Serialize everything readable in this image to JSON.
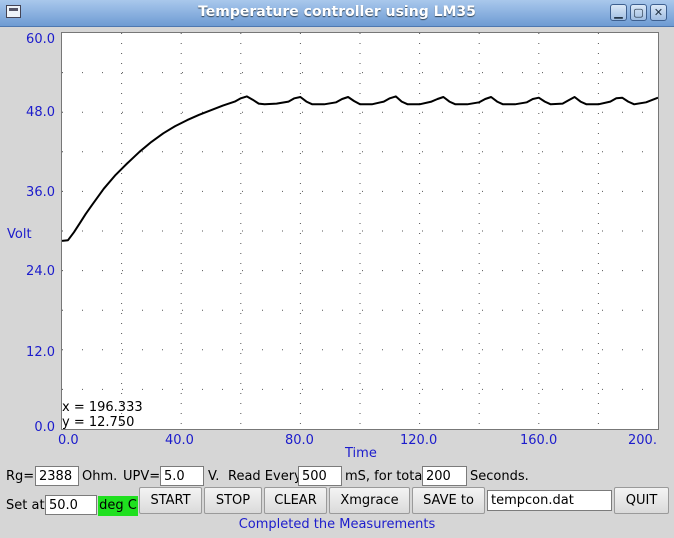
{
  "window": {
    "title": "Temperature controller using LM35"
  },
  "chart_data": {
    "type": "line",
    "xlabel": "Time",
    "ylabel": "Volt",
    "xlim": [
      0,
      200
    ],
    "ylim": [
      0,
      60
    ],
    "xticks": [
      0,
      40,
      80,
      120,
      160,
      200
    ],
    "yticks": [
      0,
      12,
      24,
      36,
      48,
      60
    ],
    "xtick_labels": [
      "0.0",
      "40.0",
      "80.0",
      "120.0",
      "160.0",
      "200."
    ],
    "ytick_labels": [
      "0.0",
      "12.0",
      "24.0",
      "36.0",
      "48.0",
      "60.0"
    ],
    "grid": true,
    "series": [
      {
        "color": "#000000",
        "x": [
          0,
          2,
          4,
          6,
          8,
          10,
          14,
          18,
          22,
          26,
          30,
          34,
          38,
          42,
          46,
          50,
          54,
          58,
          60,
          62,
          64,
          66,
          68,
          72,
          76,
          78,
          80,
          82,
          84,
          88,
          92,
          94,
          96,
          98,
          100,
          104,
          108,
          110,
          112,
          114,
          116,
          120,
          124,
          126,
          128,
          130,
          132,
          136,
          140,
          142,
          144,
          146,
          148,
          152,
          156,
          158,
          160,
          162,
          164,
          168,
          170,
          172,
          174,
          176,
          180,
          184,
          186,
          188,
          190,
          192,
          196,
          200
        ],
        "y": [
          28.5,
          28.6,
          29.8,
          31.2,
          32.6,
          33.9,
          36.4,
          38.5,
          40.3,
          42.0,
          43.5,
          44.8,
          45.9,
          46.8,
          47.6,
          48.3,
          49.0,
          49.6,
          50.1,
          50.4,
          49.9,
          49.3,
          49.2,
          49.3,
          49.6,
          50.1,
          50.3,
          49.6,
          49.2,
          49.2,
          49.5,
          50.0,
          50.3,
          49.7,
          49.2,
          49.2,
          49.6,
          50.1,
          50.4,
          49.6,
          49.2,
          49.2,
          49.6,
          50.0,
          50.3,
          49.6,
          49.2,
          49.2,
          49.5,
          50.0,
          50.3,
          49.6,
          49.2,
          49.2,
          49.5,
          50.0,
          50.2,
          49.6,
          49.2,
          49.3,
          49.8,
          50.3,
          49.6,
          49.2,
          49.2,
          49.6,
          50.1,
          50.2,
          49.6,
          49.2,
          49.5,
          50.2
        ]
      }
    ]
  },
  "readout": {
    "x": "x = 196.333",
    "y": "y = 12.750"
  },
  "controls": {
    "rg_label": "Rg=",
    "rg_value": "2388",
    "rg_unit": "Ohm.",
    "upv_label": "UPV=",
    "upv_value": "5.0",
    "upv_unit": "V.",
    "read_every_label": "Read Every",
    "read_every_value": "500",
    "for_total_label": "mS, for total",
    "for_total_value": "200",
    "seconds_label": "Seconds.",
    "set_at_label": "Set at",
    "set_at_value": "50.0",
    "unit_badge": "deg C",
    "start": "START",
    "stop": "STOP",
    "clear": "CLEAR",
    "xmgrace": "Xmgrace",
    "save_to": "SAVE to",
    "filename": "tempcon.dat",
    "quit": "QUIT"
  },
  "status": "Completed the Measurements",
  "colors": {
    "axis_text": "#1c1ccc",
    "badge": "#1fe01f",
    "titlebar": "#6e9bd3"
  }
}
